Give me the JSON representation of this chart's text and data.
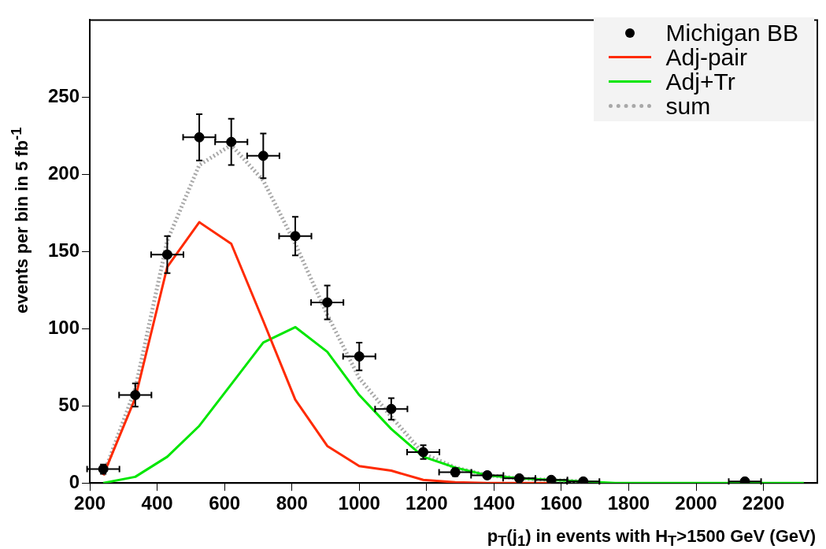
{
  "chart_data": {
    "type": "line",
    "xlabel": "p$_{T}$(j$_{1}$) in events with H$_{T}$>1500 GeV (GeV)",
    "ylabel": "events per bin in 5 fb$^{-1}$",
    "xlim": [
      200,
      2360
    ],
    "xticks": [
      200,
      400,
      600,
      800,
      1000,
      1200,
      1400,
      1600,
      1800,
      2000,
      2200
    ],
    "ylim": [
      0,
      300
    ],
    "yticks": [
      0,
      50,
      100,
      150,
      200,
      250
    ],
    "grid": false,
    "legend": "top right",
    "series": [
      {
        "name": "Michigan BB",
        "type": "scatter",
        "marker": "circle",
        "color": "#000000",
        "x": [
          240,
          335,
          430,
          525,
          620,
          715,
          810,
          905,
          1000,
          1095,
          1190,
          1285,
          1380,
          1475,
          1570,
          1665,
          2145
        ],
        "values": [
          9,
          57,
          148,
          224,
          221,
          212,
          160,
          117,
          82,
          48,
          20,
          7,
          5,
          3,
          2,
          1,
          1
        ],
        "errors": [
          3,
          7.5,
          12,
          15,
          15,
          14.5,
          12.5,
          11,
          9,
          7,
          4.5,
          2.5,
          2,
          null,
          null,
          null,
          null
        ],
        "xerrors": [
          48,
          48,
          48,
          48,
          48,
          48,
          48,
          48,
          48,
          48,
          48,
          48,
          48,
          48,
          48,
          48,
          48
        ]
      },
      {
        "name": "Adj-pair",
        "type": "line",
        "color": "#ff2a00",
        "line_style": "solid",
        "x": [
          240,
          335,
          430,
          525,
          620,
          715,
          810,
          905,
          1000,
          1095,
          1190,
          1285,
          1380,
          1475,
          1570
        ],
        "values": [
          5,
          55,
          140,
          169,
          155,
          105,
          54,
          24,
          11,
          8,
          2,
          0.5,
          0,
          0,
          0
        ]
      },
      {
        "name": "Adj+Tr",
        "type": "line",
        "color": "#00e600",
        "line_style": "solid",
        "x": [
          240,
          335,
          430,
          525,
          620,
          715,
          810,
          905,
          1000,
          1095,
          1190,
          1285,
          1380,
          1475,
          1570,
          1665,
          1760,
          2320
        ],
        "values": [
          0,
          4,
          17,
          37,
          64,
          91,
          101,
          85,
          57,
          35,
          17,
          10,
          5,
          3,
          2,
          1,
          0,
          0
        ]
      },
      {
        "name": "sum",
        "type": "line",
        "color": "#a8a8a8",
        "line_style": "dotted",
        "x": [
          240,
          335,
          430,
          525,
          620,
          715,
          810,
          905,
          1000,
          1095,
          1190,
          1285,
          1380,
          1475,
          1570,
          1665
        ],
        "values": [
          5,
          61,
          157,
          206,
          219,
          196,
          155,
          109,
          68,
          43,
          19,
          10,
          5,
          3,
          2,
          1
        ]
      }
    ]
  }
}
